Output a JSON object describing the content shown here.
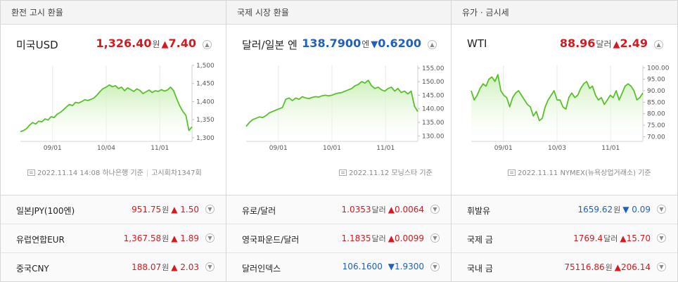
{
  "panels": [
    {
      "header": "환전 고시 환율",
      "main": {
        "name": "미국USD",
        "value": "1,326.40",
        "unit": "원",
        "dir": "up",
        "arrow": "▲",
        "change": "7.40"
      },
      "chart_data": {
        "type": "area",
        "x_ticks": [
          "09/01",
          "10/04",
          "11/01"
        ],
        "y_ticks": [
          "1,500",
          "1,450",
          "1,400",
          "1,350",
          "1,300"
        ],
        "ylim": [
          1290,
          1500
        ],
        "values": [
          1317,
          1320,
          1325,
          1335,
          1342,
          1338,
          1346,
          1344,
          1352,
          1349,
          1358,
          1356,
          1365,
          1370,
          1377,
          1385,
          1392,
          1389,
          1398,
          1396,
          1400,
          1405,
          1403,
          1406,
          1410,
          1418,
          1428,
          1436,
          1440,
          1446,
          1441,
          1444,
          1436,
          1440,
          1430,
          1438,
          1433,
          1428,
          1435,
          1431,
          1422,
          1427,
          1432,
          1425,
          1430,
          1428,
          1433,
          1429,
          1432,
          1440,
          1430,
          1408,
          1388,
          1373,
          1362,
          1320,
          1330
        ]
      },
      "source": {
        "date": "2022.11.14 14:08",
        "provider": "하나은행 기준",
        "extra": "고시회차1347회"
      },
      "list": [
        {
          "name": "일본JPY(100엔)",
          "value": "951.75",
          "unit": "원",
          "dir": "up",
          "arrow": "▲",
          "change": "1.50"
        },
        {
          "name": "유럽연합EUR",
          "value": "1,367.58",
          "unit": "원",
          "dir": "up",
          "arrow": "▲",
          "change": "1.89"
        },
        {
          "name": "중국CNY",
          "value": "188.07",
          "unit": "원",
          "dir": "up",
          "arrow": "▲",
          "change": "2.03"
        }
      ]
    },
    {
      "header": "국제 시장 환율",
      "main": {
        "name": "달러/일본 엔",
        "value": "138.7900",
        "unit": "엔",
        "dir": "down",
        "arrow": "▼",
        "change": "0.6200"
      },
      "chart_data": {
        "type": "area",
        "x_ticks": [
          "09/01",
          "10/01",
          "11/01"
        ],
        "y_ticks": [
          "155.00",
          "150.00",
          "145.00",
          "140.00",
          "135.00",
          "130.00"
        ],
        "ylim": [
          128,
          156
        ],
        "values": [
          133.5,
          135,
          136,
          136.5,
          137,
          136.8,
          137.5,
          138.5,
          139,
          139.5,
          140,
          140.5,
          143.5,
          144,
          143,
          144,
          143.5,
          144.5,
          144,
          143.8,
          144.2,
          144.5,
          144.3,
          144.8,
          145,
          144.8,
          145,
          145.5,
          145.8,
          146,
          146.5,
          147,
          147.5,
          148.5,
          149,
          150,
          149.5,
          150.5,
          148.5,
          147.5,
          148,
          147,
          146.5,
          147.5,
          148,
          146.5,
          147.5,
          146,
          146.5,
          145.5,
          146.5,
          141,
          139
        ]
      },
      "source": {
        "date": "2022.11.12",
        "provider": "모닝스타 기준",
        "extra": ""
      },
      "list": [
        {
          "name": "유로/달러",
          "value": "1.0353",
          "unit": "달러",
          "dir": "up",
          "arrow": "▲",
          "change": "0.0064"
        },
        {
          "name": "영국파운드/달러",
          "value": "1.1835",
          "unit": "달러",
          "dir": "up",
          "arrow": "▲",
          "change": "0.0099"
        },
        {
          "name": "달러인덱스",
          "value": "106.1600",
          "unit": "",
          "dir": "down",
          "arrow": "▼",
          "change": "1.9300"
        }
      ]
    },
    {
      "header": "유가 · 금시세",
      "main": {
        "name": "WTI",
        "value": "88.96",
        "unit": "달러",
        "dir": "up",
        "arrow": "▲",
        "change": "2.49"
      },
      "chart_data": {
        "type": "area",
        "x_ticks": [
          "09/01",
          "10/03",
          "11/01"
        ],
        "y_ticks": [
          "100.00",
          "95.00",
          "90.00",
          "85.00",
          "80.00",
          "75.00",
          "70.00"
        ],
        "ylim": [
          68,
          101
        ],
        "values": [
          90,
          86,
          88,
          91,
          93,
          92,
          95,
          96,
          94,
          97,
          90,
          88,
          87,
          83,
          87,
          89,
          90,
          88,
          86,
          84,
          83,
          79,
          81,
          77,
          78,
          83,
          86,
          88,
          90,
          86,
          86,
          83,
          82,
          87,
          89,
          87,
          88,
          91,
          93,
          94,
          91,
          92,
          88,
          86,
          87,
          84,
          86,
          88,
          87,
          90,
          86,
          89,
          92,
          93,
          92,
          90,
          86,
          87,
          89
        ]
      },
      "source": {
        "date": "2022.11.11",
        "provider": "NYMEX(뉴욕상업거래소) 기준",
        "extra": ""
      },
      "list": [
        {
          "name": "휘발유",
          "value": "1659.62",
          "unit": "원",
          "dir": "down",
          "arrow": "▼",
          "change": "0.09"
        },
        {
          "name": "국제 금",
          "value": "1769.4",
          "unit": "달러",
          "dir": "up",
          "arrow": "▲",
          "change": "15.70"
        },
        {
          "name": "국내 금",
          "value": "75116.86",
          "unit": "원",
          "dir": "up",
          "arrow": "▲",
          "change": "206.14"
        }
      ]
    }
  ],
  "icons": {
    "collapse": "chevron-up-icon",
    "expand": "chevron-down-icon",
    "source": "document-icon"
  }
}
